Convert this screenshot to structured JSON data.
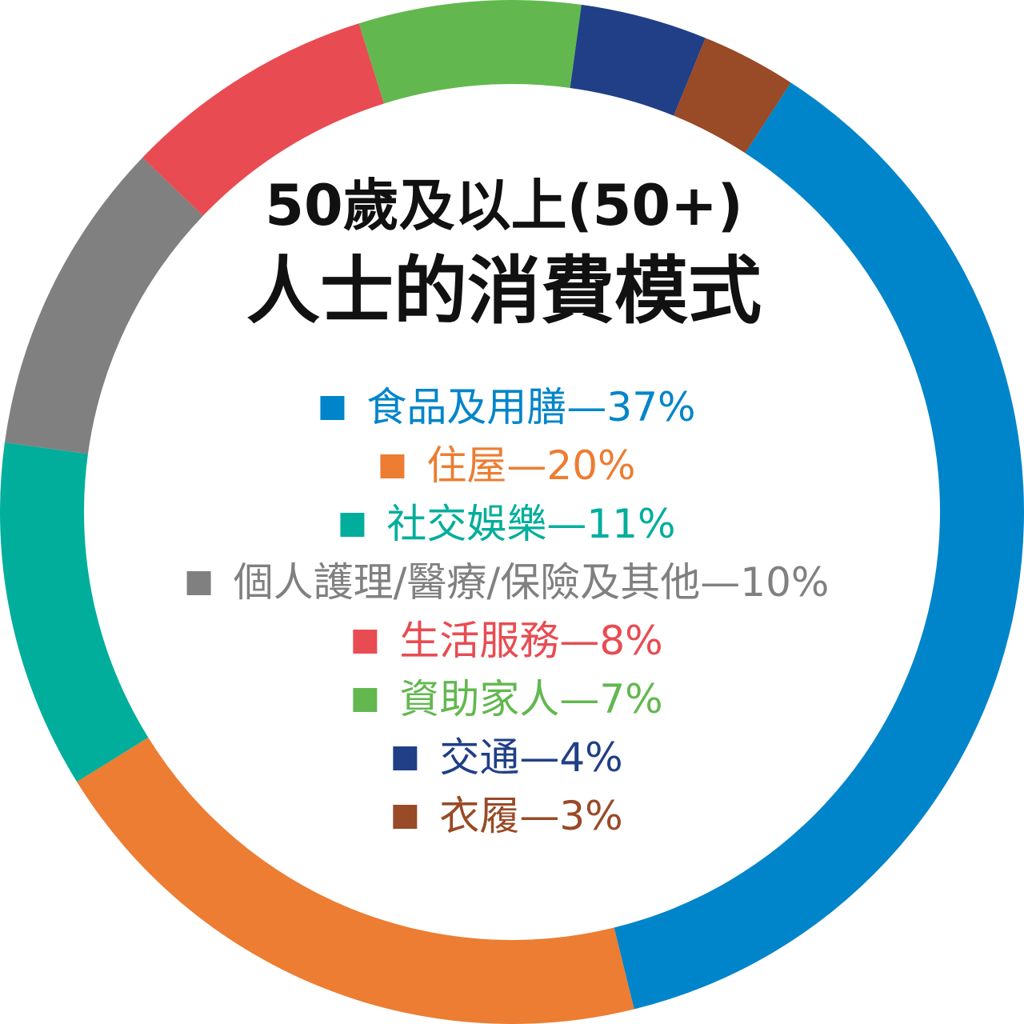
{
  "chart_data": {
    "type": "donut",
    "title": [
      "50歲及以上(50+)",
      "人士的消費模式"
    ],
    "categories": [
      "食品及用膳",
      "住屋",
      "社交娛樂",
      "個人護理/醫療/保險及其他",
      "生活服務",
      "資助家人",
      "交通",
      "衣履"
    ],
    "values": [
      37,
      20,
      11,
      10,
      8,
      7,
      4,
      3
    ],
    "value_labels": [
      "—37%",
      "—20%",
      "—11%",
      "—10%",
      "—8%",
      "—7%",
      "—4%",
      "—3%"
    ],
    "colors": [
      "#0085ca",
      "#ec7d32",
      "#00ae9b",
      "#808080",
      "#e84c52",
      "#62b84f",
      "#203f86",
      "#994a26"
    ]
  }
}
